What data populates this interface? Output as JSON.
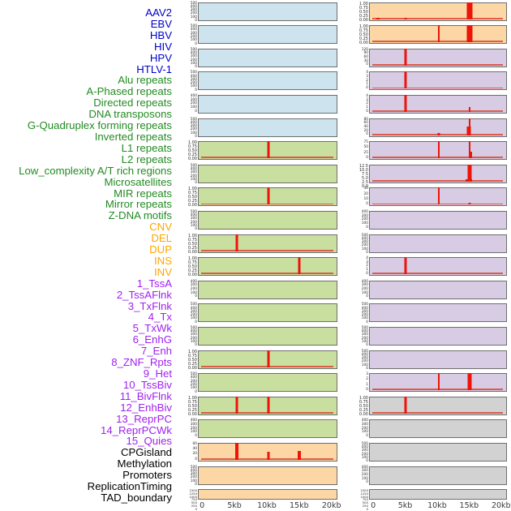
{
  "chart_data": {
    "type": "bar",
    "description": "Genomic feature density tracks over a 0-20kb region; 44 mini bar panels in two columns, red bars mark feature hits",
    "x_axis": {
      "tick_labels": [
        "0",
        "5kb",
        "10kb",
        "15kb",
        "20kb"
      ],
      "tick_kb": [
        0,
        5,
        10,
        15,
        20
      ],
      "range_kb": [
        0,
        20
      ]
    },
    "colors": {
      "spike": "#ed1408",
      "baseline": "#de4733",
      "panel_border": "#6e6e6e",
      "background": "#ffffff"
    },
    "categories": {
      "virus": {
        "label_color": "#0000cc",
        "panel_color": "#cde4ee"
      },
      "repeats": {
        "label_color": "#228b22",
        "panel_color": "#c9df9f"
      },
      "structural_variant": {
        "label_color": "#ffa500",
        "panel_color": "#fcd6a4"
      },
      "chromatin_state": {
        "label_color": "#a020f0",
        "panel_color": "#d7cce4"
      },
      "other": {
        "label_color": "#000000",
        "panel_color": "#d2d2d2"
      }
    },
    "columns": {
      "left": [
        {
          "label": "AAV2",
          "category": "virus",
          "yticks": [
            "500",
            "400",
            "300",
            "200",
            "100",
            "0"
          ],
          "spikes": [],
          "baseline": false
        },
        {
          "label": "EBV",
          "category": "virus",
          "yticks": [
            "500",
            "400",
            "300",
            "200",
            "100",
            "0"
          ],
          "spikes": [],
          "baseline": false
        },
        {
          "label": "HBV",
          "category": "virus",
          "yticks": [
            "500",
            "400",
            "300",
            "200",
            "100",
            "0"
          ],
          "spikes": [],
          "baseline": false
        },
        {
          "label": "HIV",
          "category": "virus",
          "yticks": [
            "500",
            "400",
            "300",
            "200",
            "100",
            "0"
          ],
          "spikes": [],
          "baseline": false
        },
        {
          "label": "HPV",
          "category": "virus",
          "yticks": [
            "400",
            "300",
            "200",
            "100",
            "0"
          ],
          "spikes": [],
          "baseline": false
        },
        {
          "label": "HTLV-1",
          "category": "virus",
          "yticks": [
            "500",
            "400",
            "300",
            "200",
            "100",
            "0"
          ],
          "spikes": [],
          "baseline": false
        },
        {
          "label": "Alu repeats",
          "category": "repeats",
          "yticks": [
            "1.00",
            "0.75",
            "0.50",
            "0.25",
            "0.00"
          ],
          "spikes": [
            {
              "kb": 10.3,
              "h": 1,
              "w": 3
            }
          ],
          "baseline": true
        },
        {
          "label": "A-Phased repeats",
          "category": "repeats",
          "yticks": [
            "500",
            "400",
            "300",
            "200",
            "100",
            "0"
          ],
          "spikes": [],
          "baseline": false
        },
        {
          "label": "Directed repeats",
          "category": "repeats",
          "yticks": [
            "1.00",
            "0.75",
            "0.50",
            "0.25",
            "0.00"
          ],
          "spikes": [
            {
              "kb": 10.3,
              "h": 1,
              "w": 3
            }
          ],
          "baseline": true
        },
        {
          "label": "DNA transposons",
          "category": "repeats",
          "yticks": [
            "500",
            "400",
            "300",
            "200",
            "100",
            "0"
          ],
          "spikes": [],
          "baseline": false
        },
        {
          "label": "G-Quadruplex forming repeats",
          "category": "repeats",
          "yticks": [
            "1.00",
            "0.75",
            "0.50",
            "0.25",
            "0.00"
          ],
          "spikes": [
            {
              "kb": 5.3,
              "h": 1,
              "w": 3
            }
          ],
          "baseline": true
        },
        {
          "label": "Inverted repeats",
          "category": "repeats",
          "yticks": [
            "1.00",
            "0.75",
            "0.50",
            "0.25",
            "0.00"
          ],
          "spikes": [
            {
              "kb": 15.1,
              "h": 1,
              "w": 3
            }
          ],
          "baseline": true
        },
        {
          "label": "L1 repeats",
          "category": "repeats",
          "yticks": [
            "400",
            "300",
            "200",
            "100",
            "0"
          ],
          "spikes": [],
          "baseline": false
        },
        {
          "label": "L2 repeats",
          "category": "repeats",
          "yticks": [
            "500",
            "400",
            "300",
            "200",
            "100",
            "0"
          ],
          "spikes": [],
          "baseline": false
        },
        {
          "label": "Low_complexity A/T rich regions",
          "category": "repeats",
          "yticks": [
            "500",
            "400",
            "300",
            "200",
            "100",
            "0"
          ],
          "spikes": [],
          "baseline": false
        },
        {
          "label": "Microsatellites",
          "category": "repeats",
          "yticks": [
            "1.00",
            "0.75",
            "0.50",
            "0.25",
            "0.00"
          ],
          "spikes": [
            {
              "kb": 10.3,
              "h": 1,
              "w": 3
            }
          ],
          "baseline": true
        },
        {
          "label": "MIR repeats",
          "category": "repeats",
          "yticks": [
            "500",
            "400",
            "300",
            "200",
            "100",
            "0"
          ],
          "spikes": [],
          "baseline": false
        },
        {
          "label": "Mirror repeats",
          "category": "repeats",
          "yticks": [
            "1.00",
            "0.75",
            "0.50",
            "0.25",
            "0.00"
          ],
          "spikes": [
            {
              "kb": 5.3,
              "h": 1,
              "w": 3
            },
            {
              "kb": 10.3,
              "h": 1,
              "w": 3
            }
          ],
          "baseline": true
        },
        {
          "label": "Z-DNA motifs",
          "category": "repeats",
          "yticks": [
            "400",
            "300",
            "200",
            "100",
            "0"
          ],
          "spikes": [],
          "baseline": false
        },
        {
          "label": "CNV",
          "category": "structural_variant",
          "yticks": [
            "60",
            "40",
            "20",
            "0"
          ],
          "spikes": [
            {
              "kb": 5.3,
              "h": 1,
              "w": 4
            },
            {
              "kb": 10.3,
              "h": 0.45,
              "w": 3
            },
            {
              "kb": 15.1,
              "h": 0.5,
              "w": 4
            }
          ],
          "baseline": true
        },
        {
          "label": "DEL",
          "category": "structural_variant",
          "yticks": [
            "500",
            "400",
            "300",
            "200",
            "100",
            "0"
          ],
          "spikes": [],
          "baseline": false
        },
        {
          "label": "DUP",
          "category": "structural_variant",
          "yticks": [
            "1500",
            "1250",
            "1000",
            "750",
            "500",
            "250",
            "0"
          ],
          "spikes": [],
          "baseline": false
        }
      ],
      "right": [
        {
          "label": "INS",
          "category": "structural_variant",
          "yticks": [
            "1.00",
            "0.75",
            "0.50",
            "0.25",
            "0.00"
          ],
          "spikes": [
            {
              "kb": 0.6,
              "h": 0.06,
              "w": 4
            },
            {
              "kb": 5.05,
              "h": 0.06,
              "w": 3
            },
            {
              "kb": 15.1,
              "h": 1,
              "w": 7
            }
          ],
          "baseline": true
        },
        {
          "label": "INV",
          "category": "structural_variant",
          "yticks": [
            "1.00",
            "0.75",
            "0.50",
            "0.25",
            "0.00"
          ],
          "spikes": [
            {
              "kb": 10.3,
              "h": 1,
              "w": 2
            },
            {
              "kb": 15.1,
              "h": 1,
              "w": 7
            }
          ],
          "baseline": true
        },
        {
          "label": "1_TssA",
          "category": "chromatin_state",
          "yticks": [
            "120",
            "90",
            "60",
            "30",
            "0"
          ],
          "spikes": [
            {
              "kb": 5.05,
              "h": 1,
              "w": 3
            }
          ],
          "baseline": true
        },
        {
          "label": "2_TssAFlnk",
          "category": "chromatin_state",
          "yticks": [
            "4",
            "3",
            "2",
            "1",
            "0"
          ],
          "spikes": [
            {
              "kb": 5.05,
              "h": 1,
              "w": 3
            }
          ],
          "baseline": true
        },
        {
          "label": "3_TxFlnk",
          "category": "chromatin_state",
          "yticks": [
            "4",
            "3",
            "2",
            "1",
            "0"
          ],
          "spikes": [
            {
              "kb": 5.05,
              "h": 1,
              "w": 3
            },
            {
              "kb": 15.1,
              "h": 0.3,
              "w": 2
            }
          ],
          "baseline": true
        },
        {
          "label": "4_Tx",
          "category": "chromatin_state",
          "yticks": [
            "80",
            "60",
            "40",
            "20",
            "0"
          ],
          "spikes": [
            {
              "kb": 10.3,
              "h": 0.1,
              "w": 3
            },
            {
              "kb": 15.0,
              "h": 0.5,
              "w": 5
            },
            {
              "kb": 15.2,
              "h": 1,
              "w": 2
            }
          ],
          "baseline": true
        },
        {
          "label": "5_TxWk",
          "category": "chromatin_state",
          "yticks": [
            "75",
            "50",
            "25",
            "0"
          ],
          "spikes": [
            {
              "kb": 10.3,
              "h": 1,
              "w": 2
            },
            {
              "kb": 15.1,
              "h": 1,
              "w": 2
            },
            {
              "kb": 15.25,
              "h": 0.4,
              "w": 4
            }
          ],
          "baseline": true
        },
        {
          "label": "6_EnhG",
          "category": "chromatin_state",
          "yticks": [
            "12.5",
            "10.0",
            "7.5",
            "5.0",
            "2.5",
            "0.0"
          ],
          "spikes": [
            {
              "kb": 15.05,
              "h": 0.15,
              "w": 8
            },
            {
              "kb": 15.1,
              "h": 1,
              "w": 5
            }
          ],
          "baseline": true
        },
        {
          "label": "7_Enh",
          "category": "chromatin_state",
          "yticks": [
            "30",
            "20",
            "10",
            "0"
          ],
          "spikes": [
            {
              "kb": 10.3,
              "h": 1,
              "w": 2
            },
            {
              "kb": 15.1,
              "h": 0.12,
              "w": 3
            }
          ],
          "baseline": true
        },
        {
          "label": "8_ZNF_Rpts",
          "category": "chromatin_state",
          "yticks": [
            "400",
            "300",
            "200",
            "100",
            "0"
          ],
          "spikes": [],
          "baseline": false
        },
        {
          "label": "9_Het",
          "category": "chromatin_state",
          "yticks": [
            "500",
            "400",
            "300",
            "200",
            "100",
            "0"
          ],
          "spikes": [],
          "baseline": false
        },
        {
          "label": "10_TssBiv",
          "category": "chromatin_state",
          "yticks": [
            "4",
            "3",
            "2",
            "1",
            "0"
          ],
          "spikes": [
            {
              "kb": 5.05,
              "h": 1,
              "w": 3
            }
          ],
          "baseline": true
        },
        {
          "label": "11_BivFlnk",
          "category": "chromatin_state",
          "yticks": [
            "400",
            "300",
            "200",
            "100",
            "0"
          ],
          "spikes": [],
          "baseline": false
        },
        {
          "label": "12_EnhBiv",
          "category": "chromatin_state",
          "yticks": [
            "500",
            "400",
            "300",
            "200",
            "100",
            "0"
          ],
          "spikes": [],
          "baseline": false
        },
        {
          "label": "13_ReprPC",
          "category": "chromatin_state",
          "yticks": [
            "500",
            "400",
            "300",
            "200",
            "100",
            "0"
          ],
          "spikes": [],
          "baseline": false
        },
        {
          "label": "14_ReprPCWk",
          "category": "chromatin_state",
          "yticks": [
            "500",
            "400",
            "300",
            "200",
            "100",
            "0"
          ],
          "spikes": [],
          "baseline": false
        },
        {
          "label": "15_Quies",
          "category": "chromatin_state",
          "yticks": [
            "3",
            "2",
            "1",
            "0"
          ],
          "spikes": [
            {
              "kb": 10.3,
              "h": 1,
              "w": 2
            },
            {
              "kb": 15.1,
              "h": 1,
              "w": 5
            }
          ],
          "baseline": true
        },
        {
          "label": "CPGisland",
          "category": "other",
          "yticks": [
            "1.00",
            "0.75",
            "0.50",
            "0.25",
            "0.00"
          ],
          "spikes": [
            {
              "kb": 5.05,
              "h": 1,
              "w": 3
            }
          ],
          "baseline": true
        },
        {
          "label": "Methylation",
          "category": "other",
          "yticks": [
            "400",
            "300",
            "200",
            "100",
            "0"
          ],
          "spikes": [],
          "baseline": false
        },
        {
          "label": "Promoters",
          "category": "other",
          "yticks": [
            "500",
            "400",
            "300",
            "200",
            "100",
            "0"
          ],
          "spikes": [],
          "baseline": false
        },
        {
          "label": "ReplicationTiming",
          "category": "other",
          "yticks": [
            "400",
            "300",
            "200",
            "100",
            "0"
          ],
          "spikes": [],
          "baseline": false
        },
        {
          "label": "TAD_boundary",
          "category": "other",
          "yticks": [
            "1500",
            "1250",
            "1000",
            "750",
            "500",
            "250",
            "0"
          ],
          "spikes": [],
          "baseline": false
        }
      ]
    }
  }
}
